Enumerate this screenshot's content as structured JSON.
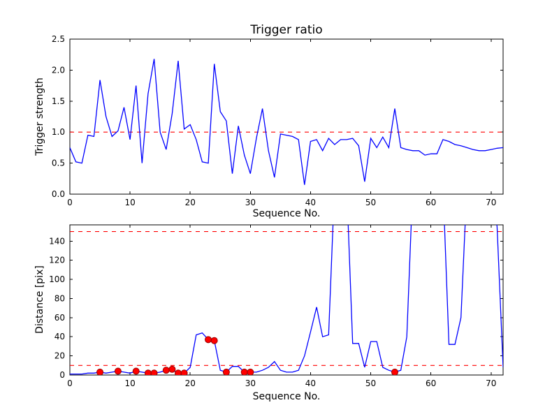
{
  "figure": {
    "background": "#ffffff",
    "frame_color": "#000000"
  },
  "chart_data": [
    {
      "type": "line",
      "title": "Trigger ratio",
      "xlabel": "Sequence No.",
      "ylabel": "Trigger strength",
      "xlim": [
        0,
        72
      ],
      "ylim": [
        0.0,
        2.5
      ],
      "xtick_vals": [
        0,
        10,
        20,
        30,
        40,
        50,
        60,
        70
      ],
      "xtick_labels": [
        "0",
        "10",
        "20",
        "30",
        "40",
        "50",
        "60",
        "70"
      ],
      "ytick_vals": [
        0.0,
        0.5,
        1.0,
        1.5,
        2.0,
        2.5
      ],
      "ytick_labels": [
        "0.0",
        "0.5",
        "1.0",
        "1.5",
        "2.0",
        "2.5"
      ],
      "line_color": "#0000ff",
      "grid": false,
      "legend": "none",
      "threshold_lines": [
        {
          "y": 1.0,
          "color": "#ff0000",
          "style": "dashed"
        }
      ],
      "x": [
        0,
        1,
        2,
        3,
        4,
        5,
        6,
        7,
        8,
        9,
        10,
        11,
        12,
        13,
        14,
        15,
        16,
        17,
        18,
        19,
        20,
        21,
        22,
        23,
        24,
        25,
        26,
        27,
        28,
        29,
        30,
        31,
        32,
        33,
        34,
        35,
        36,
        37,
        38,
        39,
        40,
        41,
        42,
        43,
        44,
        45,
        46,
        47,
        48,
        49,
        50,
        51,
        52,
        53,
        54,
        55,
        56,
        57,
        58,
        59,
        60,
        61,
        62,
        63,
        64,
        65,
        66,
        67,
        68,
        69,
        70,
        71,
        72
      ],
      "y": [
        0.75,
        0.52,
        0.5,
        0.95,
        0.93,
        1.84,
        1.25,
        0.93,
        1.02,
        1.4,
        0.88,
        1.75,
        0.5,
        1.62,
        2.18,
        1.0,
        0.72,
        1.3,
        2.15,
        1.05,
        1.12,
        0.88,
        0.52,
        0.5,
        2.1,
        1.33,
        1.18,
        0.33,
        1.1,
        0.63,
        0.33,
        0.9,
        1.38,
        0.7,
        0.27,
        0.97,
        0.95,
        0.93,
        0.88,
        0.15,
        0.85,
        0.88,
        0.7,
        0.9,
        0.8,
        0.88,
        0.88,
        0.9,
        0.78,
        0.2,
        0.9,
        0.75,
        0.92,
        0.75,
        1.38,
        0.75,
        0.72,
        0.7,
        0.7,
        0.63,
        0.65,
        0.65,
        0.88,
        0.85,
        0.8,
        0.78,
        0.75,
        0.72,
        0.7,
        0.7,
        0.72,
        0.74,
        0.75
      ]
    },
    {
      "type": "line",
      "title": "",
      "xlabel": "Sequence No.",
      "ylabel": "Distance [pix]",
      "xlim": [
        0,
        72
      ],
      "ylim": [
        0,
        157
      ],
      "xtick_vals": [
        0,
        10,
        20,
        30,
        40,
        50,
        60,
        70
      ],
      "xtick_labels": [
        "0",
        "10",
        "20",
        "30",
        "40",
        "50",
        "60",
        "70"
      ],
      "ytick_vals": [
        0,
        20,
        40,
        60,
        80,
        100,
        120,
        140
      ],
      "ytick_labels": [
        "0",
        "20",
        "40",
        "60",
        "80",
        "100",
        "120",
        "140"
      ],
      "line_color": "#0000ff",
      "grid": false,
      "legend": "none",
      "threshold_lines": [
        {
          "y": 150,
          "color": "#ff0000",
          "style": "dashed"
        },
        {
          "y": 10,
          "color": "#ff0000",
          "style": "dashed"
        }
      ],
      "x": [
        0,
        1,
        2,
        3,
        4,
        5,
        6,
        7,
        8,
        9,
        10,
        11,
        12,
        13,
        14,
        15,
        16,
        17,
        18,
        19,
        20,
        21,
        22,
        23,
        24,
        25,
        26,
        27,
        28,
        29,
        30,
        31,
        32,
        33,
        34,
        35,
        36,
        37,
        38,
        39,
        40,
        41,
        42,
        43,
        44,
        45,
        46,
        47,
        48,
        49,
        50,
        51,
        52,
        53,
        54,
        55,
        56,
        57,
        58,
        59,
        60,
        61,
        62,
        63,
        64,
        65,
        66,
        67,
        68,
        69,
        70,
        71,
        72
      ],
      "y": [
        1,
        1,
        1,
        2,
        2,
        3,
        2,
        3,
        4,
        3,
        2,
        4,
        3,
        2,
        2,
        3,
        5,
        6,
        2,
        2,
        8,
        42,
        44,
        37,
        36,
        5,
        3,
        9,
        9,
        3,
        3,
        3,
        5,
        8,
        14,
        5,
        3,
        3,
        5,
        20,
        45,
        71,
        40,
        42,
        200,
        200,
        200,
        33,
        33,
        8,
        35,
        35,
        8,
        5,
        3,
        5,
        40,
        200,
        200,
        200,
        200,
        200,
        200,
        32,
        32,
        60,
        200,
        200,
        200,
        200,
        200,
        155,
        8
      ],
      "markers": {
        "shape": "circle",
        "color": "#ff0000",
        "edge_color": "#990000",
        "points": [
          [
            5,
            3
          ],
          [
            8,
            4
          ],
          [
            11,
            4
          ],
          [
            13,
            2
          ],
          [
            14,
            2
          ],
          [
            16,
            5
          ],
          [
            17,
            6
          ],
          [
            18,
            2
          ],
          [
            19,
            2
          ],
          [
            23,
            37
          ],
          [
            24,
            36
          ],
          [
            26,
            3
          ],
          [
            29,
            3
          ],
          [
            30,
            3
          ],
          [
            54,
            3
          ]
        ]
      }
    }
  ]
}
